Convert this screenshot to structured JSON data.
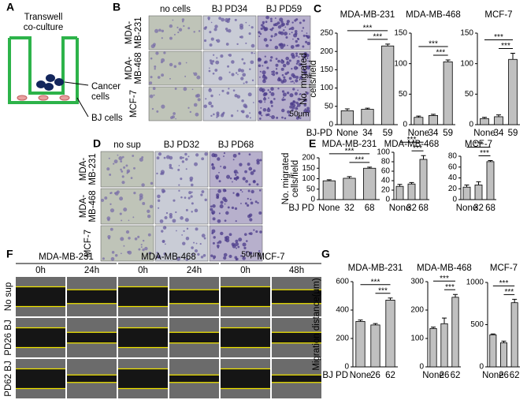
{
  "panel_labels": [
    "A",
    "B",
    "C",
    "D",
    "E",
    "F",
    "G"
  ],
  "transwell": {
    "title": [
      "Transwell",
      "co-culture"
    ],
    "cancer": [
      "Cancer",
      "cells"
    ],
    "bj": "BJ cells"
  },
  "panel_b": {
    "columns": [
      "no cells",
      "BJ PD34",
      "BJ PD59"
    ],
    "rows": [
      [
        "MDA-",
        "MB-231"
      ],
      [
        "MDA-",
        "MB-468"
      ],
      [
        "MCF-7"
      ]
    ],
    "scale": "50μm"
  },
  "panel_d": {
    "columns": [
      "no sup",
      "BJ PD32",
      "BJ PD68"
    ],
    "rows": [
      [
        "MDA-",
        "MB-231"
      ],
      [
        "MDA-",
        "MB-468"
      ],
      [
        "MCF-7"
      ]
    ],
    "scale": "50μm"
  },
  "panel_f": {
    "groups": [
      {
        "name": "MDA-MB-231",
        "times": [
          "0h",
          "24h"
        ]
      },
      {
        "name": "MDA-MB-468",
        "times": [
          "0h",
          "24h"
        ]
      },
      {
        "name": "MCF-7",
        "times": [
          "0h",
          "48h"
        ]
      }
    ],
    "rows": [
      "No sup",
      "PD26 BJ",
      "PD62 BJ"
    ]
  },
  "chart_data": [
    {
      "type": "bar",
      "title": "MDA-MB-231",
      "ylabel": [
        "No. migrated",
        "cells/field"
      ],
      "xlabel": "BJ-PD",
      "categories": [
        "None",
        "34",
        "59"
      ],
      "values": [
        38,
        42,
        215
      ],
      "errors": [
        5,
        3,
        5
      ],
      "ylim": [
        0,
        250
      ],
      "yticks": [
        0,
        50,
        100,
        150,
        200,
        250
      ],
      "color": "#c0c0c0",
      "significance": [
        {
          "from": 0,
          "to": 2,
          "label": "***"
        },
        {
          "from": 1,
          "to": 2,
          "label": "***"
        }
      ]
    },
    {
      "type": "bar",
      "title": "MDA-MB-468",
      "categories": [
        "None",
        "34",
        "59"
      ],
      "values": [
        12,
        15,
        103
      ],
      "errors": [
        2,
        2,
        3
      ],
      "ylim": [
        0,
        150
      ],
      "yticks": [
        0,
        50,
        100,
        150
      ],
      "color": "#c0c0c0",
      "significance": [
        {
          "from": 0,
          "to": 2,
          "label": "***"
        },
        {
          "from": 1,
          "to": 2,
          "label": "***"
        }
      ]
    },
    {
      "type": "bar",
      "title": "MCF-7",
      "categories": [
        "None",
        "34",
        "59"
      ],
      "values": [
        10,
        13,
        107
      ],
      "errors": [
        2,
        3,
        10
      ],
      "ylim": [
        0,
        150
      ],
      "yticks": [
        0,
        50,
        100,
        150
      ],
      "color": "#c0c0c0",
      "significance": [
        {
          "from": 0,
          "to": 2,
          "label": "***"
        },
        {
          "from": 1,
          "to": 2,
          "label": "***"
        }
      ]
    },
    {
      "type": "bar",
      "title": "MDA-MB-231",
      "ylabel": [
        "No. migrated",
        "cells/field"
      ],
      "xlabel": "BJ PD",
      "categories": [
        "None",
        "32",
        "68"
      ],
      "values": [
        90,
        102,
        150
      ],
      "errors": [
        5,
        8,
        5
      ],
      "ylim": [
        0,
        200
      ],
      "yticks": [
        0,
        50,
        100,
        150,
        200
      ],
      "color": "#c0c0c0",
      "significance": [
        {
          "from": 0,
          "to": 2,
          "label": "***"
        },
        {
          "from": 1,
          "to": 2,
          "label": "***"
        }
      ]
    },
    {
      "type": "bar",
      "title": "MDA-MB-468",
      "categories": [
        "None",
        "32",
        "68"
      ],
      "values": [
        28,
        33,
        85
      ],
      "errors": [
        4,
        3,
        8
      ],
      "ylim": [
        0,
        100
      ],
      "yticks": [
        0,
        20,
        40,
        60,
        80,
        100
      ],
      "color": "#c0c0c0",
      "significance": [
        {
          "from": 0,
          "to": 2,
          "label": "***"
        },
        {
          "from": 1,
          "to": 2,
          "label": "***"
        }
      ]
    },
    {
      "type": "bar",
      "title": "MCF-7",
      "categories": [
        "None",
        "32",
        "68"
      ],
      "values": [
        23,
        27,
        70
      ],
      "errors": [
        4,
        6,
        2
      ],
      "ylim": [
        0,
        80
      ],
      "yticks": [
        0,
        20,
        40,
        60,
        80
      ],
      "color": "#c0c0c0",
      "significance": [
        {
          "from": 0,
          "to": 2,
          "label": "***"
        },
        {
          "from": 1,
          "to": 2,
          "label": "***"
        }
      ]
    },
    {
      "type": "bar",
      "title": "MDA-MB-231",
      "ylabel": [
        "Migration distance(μm)"
      ],
      "xlabel": "BJ PD",
      "categories": [
        "None",
        "26",
        "62"
      ],
      "values": [
        320,
        295,
        470
      ],
      "errors": [
        10,
        10,
        15
      ],
      "ylim": [
        0,
        600
      ],
      "yticks": [
        0,
        200,
        400,
        600
      ],
      "color": "#c0c0c0",
      "significance": [
        {
          "from": 0,
          "to": 2,
          "label": "***"
        },
        {
          "from": 1,
          "to": 2,
          "label": "***"
        }
      ]
    },
    {
      "type": "bar",
      "title": "MDA-MB-468",
      "categories": [
        "None",
        "26",
        "62"
      ],
      "values": [
        135,
        152,
        245
      ],
      "errors": [
        5,
        20,
        10
      ],
      "ylim": [
        0,
        300
      ],
      "yticks": [
        0,
        100,
        200,
        300
      ],
      "color": "#c0c0c0",
      "significance": [
        {
          "from": 0,
          "to": 2,
          "label": "***"
        },
        {
          "from": 1,
          "to": 2,
          "label": "***"
        }
      ]
    },
    {
      "type": "bar",
      "title": "MCF-7",
      "categories": [
        "None",
        "26",
        "62"
      ],
      "values": [
        380,
        285,
        760
      ],
      "errors": [
        10,
        20,
        40
      ],
      "ylim": [
        0,
        1000
      ],
      "yticks": [
        0,
        500,
        1000
      ],
      "color": "#c0c0c0",
      "significance": [
        {
          "from": 0,
          "to": 2,
          "label": "***"
        },
        {
          "from": 1,
          "to": 2,
          "label": "***"
        }
      ]
    }
  ]
}
